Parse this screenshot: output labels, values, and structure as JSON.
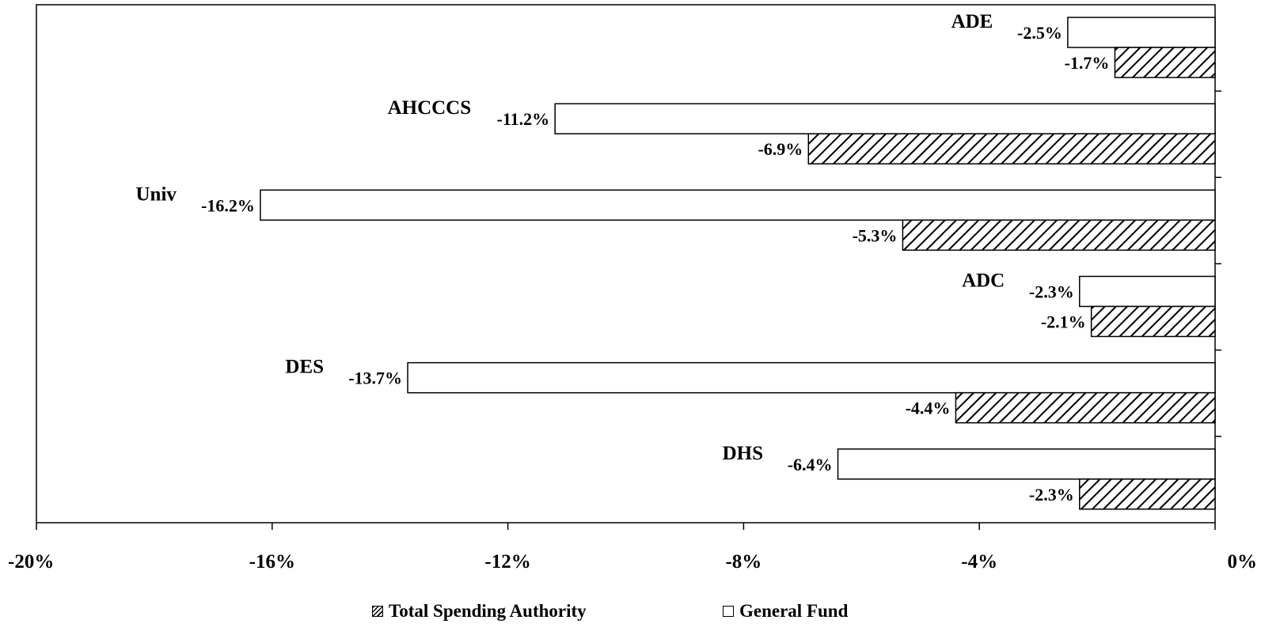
{
  "chart_data": {
    "type": "bar",
    "orientation": "horizontal",
    "categories": [
      "ADE",
      "AHCCCS",
      "Univ",
      "ADC",
      "DES",
      "DHS"
    ],
    "series": [
      {
        "name": "General Fund",
        "values": [
          -2.5,
          -11.2,
          -16.2,
          -2.3,
          -13.7,
          -6.4
        ],
        "labels": [
          "-2.5%",
          "-11.2%",
          "-16.2%",
          "-2.3%",
          "-13.7%",
          "-6.4%"
        ],
        "fill": "#ffffff"
      },
      {
        "name": "Total Spending Authority",
        "values": [
          -1.7,
          -6.9,
          -5.3,
          -2.1,
          -4.4,
          -2.3
        ],
        "labels": [
          "-1.7%",
          "-6.9%",
          "-5.3%",
          "-2.1%",
          "-4.4%",
          "-2.3%"
        ],
        "fill": "hatched"
      }
    ],
    "xlim": [
      -20,
      0
    ],
    "x_ticks": [
      -20,
      -16,
      -12,
      -8,
      -4,
      0
    ],
    "x_tick_labels": [
      "-20%",
      "-16%",
      "-12%",
      "-8%",
      "-4%",
      "0%"
    ],
    "grid": false,
    "legend_position": "bottom",
    "legend": [
      {
        "name": "Total Spending Authority",
        "style": "hatched"
      },
      {
        "name": "General Fund",
        "style": "plain"
      }
    ],
    "colors": {
      "stroke": "#000000",
      "fill": "#ffffff"
    }
  }
}
